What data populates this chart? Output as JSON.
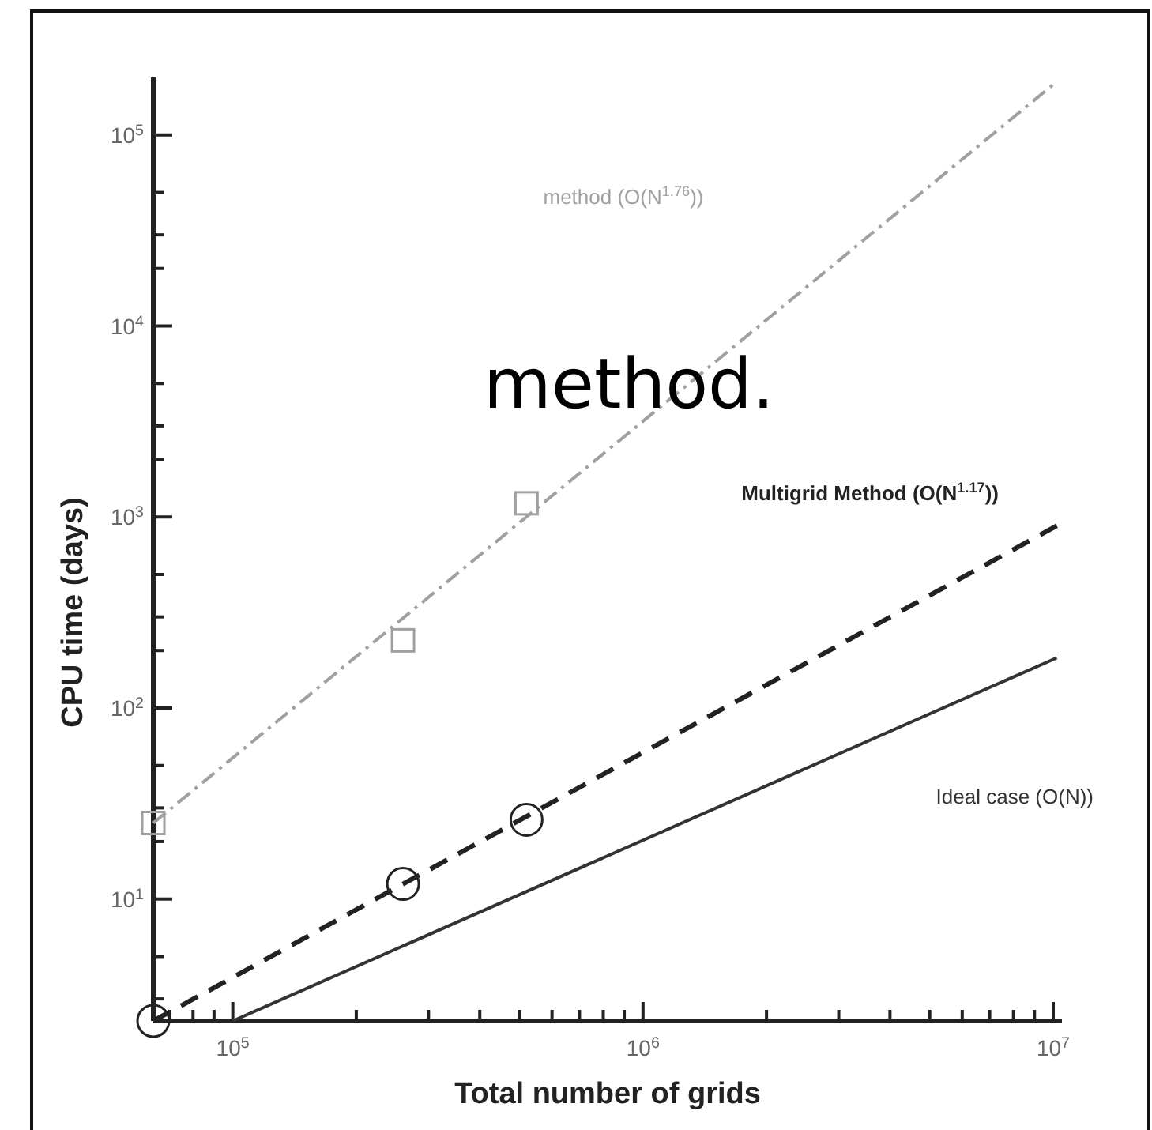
{
  "chart_data": {
    "type": "line",
    "xlabel": "Total number of grids",
    "ylabel": "CPU time (days)",
    "log": "xy",
    "grid": false,
    "xlim": [
      64000,
      10500000
    ],
    "ylim": [
      2.3,
      200000
    ],
    "xticks": [
      {
        "value": 70000,
        "label": null
      },
      {
        "value": 80000,
        "label": null
      },
      {
        "value": 90000,
        "label": null
      },
      {
        "value": 100000,
        "label": "10$^{5}$"
      },
      {
        "value": 200000,
        "label": null
      },
      {
        "value": 300000,
        "label": null
      },
      {
        "value": 400000,
        "label": null
      },
      {
        "value": 500000,
        "label": null
      },
      {
        "value": 600000,
        "label": null
      },
      {
        "value": 700000,
        "label": null
      },
      {
        "value": 800000,
        "label": null
      },
      {
        "value": 900000,
        "label": null
      },
      {
        "value": 1000000,
        "label": "10$^{6}$"
      },
      {
        "value": 2000000,
        "label": null
      },
      {
        "value": 3000000,
        "label": null
      },
      {
        "value": 4000000,
        "label": null
      },
      {
        "value": 5000000,
        "label": null
      },
      {
        "value": 6000000,
        "label": null
      },
      {
        "value": 7000000,
        "label": null
      },
      {
        "value": 8000000,
        "label": null
      },
      {
        "value": 9000000,
        "label": null
      },
      {
        "value": 10000000,
        "label": "10$^{7}$"
      }
    ],
    "yticks": [
      {
        "value": 3,
        "label": null
      },
      {
        "value": 5,
        "label": null
      },
      {
        "value": 10,
        "label": "10$^{1}$"
      },
      {
        "value": 20,
        "label": null
      },
      {
        "value": 30,
        "label": null
      },
      {
        "value": 50,
        "label": null
      },
      {
        "value": 100,
        "label": "10$^{2}$"
      },
      {
        "value": 200,
        "label": null
      },
      {
        "value": 300,
        "label": null
      },
      {
        "value": 500,
        "label": null
      },
      {
        "value": 1000,
        "label": "10$^{3}$"
      },
      {
        "value": 2000,
        "label": null
      },
      {
        "value": 3000,
        "label": null
      },
      {
        "value": 5000,
        "label": null
      },
      {
        "value": 10000,
        "label": "10$^{4}$"
      },
      {
        "value": 20000,
        "label": null
      },
      {
        "value": 30000,
        "label": null
      },
      {
        "value": 50000,
        "label": null
      },
      {
        "value": 100000,
        "label": "10$^{5}$"
      }
    ],
    "series": [
      {
        "name": "method (O(N$^{1.76}$))",
        "color": "#a0a0a0",
        "marker": "none",
        "line_style": "dashdot",
        "x": [
          64000,
          10200000
        ],
        "values": [
          25,
          190000
        ]
      },
      {
        "name": "Multigrid Method (O(N$^{1.17}$))",
        "color": "#222222",
        "marker": "none",
        "line_style": "dashed",
        "x": [
          64000,
          10200000
        ],
        "values": [
          2.3,
          900
        ]
      },
      {
        "name": "Ideal case (O(N))",
        "color": "#333333",
        "marker": "none",
        "line_style": "solid",
        "x": [
          100000,
          10200000
        ],
        "values": [
          2.3,
          183
        ]
      },
      {
        "type": "scatter",
        "color": "#a0a0a0",
        "marker": "square",
        "x": [
          64000,
          260000,
          520000
        ],
        "values": [
          25,
          226,
          1180
        ]
      },
      {
        "type": "scatter",
        "color": "#222222",
        "marker": "circle",
        "x": [
          64000,
          260000,
          520000
        ],
        "values": [
          2.3,
          12,
          26
        ]
      }
    ],
    "annotations": [
      "method."
    ]
  }
}
